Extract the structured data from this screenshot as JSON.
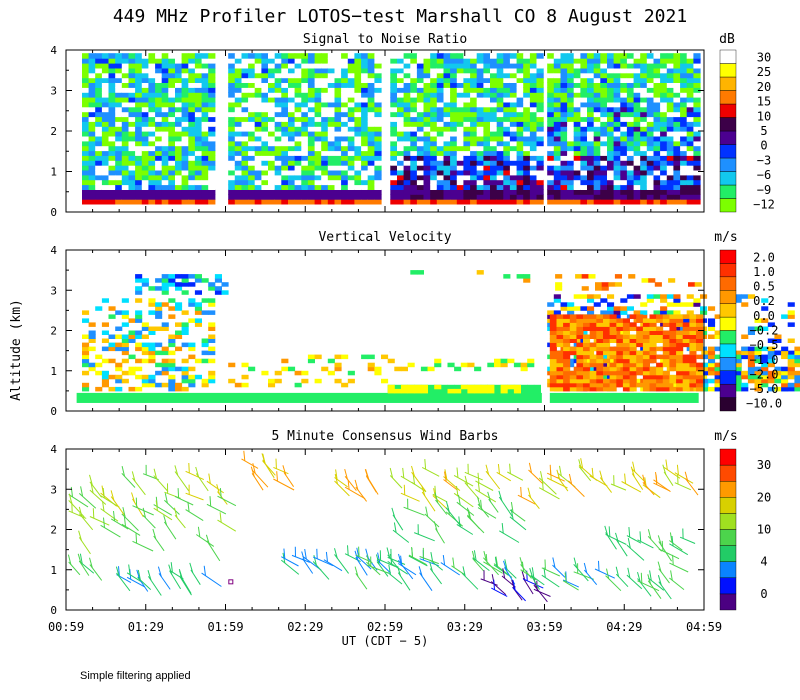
{
  "title": "449 MHz Profiler LOTOS−test Marshall CO  8 August 2021",
  "footnote": "Simple filtering applied",
  "colors": {
    "snr_scale": [
      "#7cff00",
      "#22ee66",
      "#12c8ee",
      "#1e90ff",
      "#0032ff",
      "#4b0090",
      "#3c0048",
      "#ee0000",
      "#ff7a00",
      "#ffb400",
      "#ffff00",
      "#ffffff"
    ],
    "vel_scale": [
      "#2a0030",
      "#4b0090",
      "#0028ff",
      "#1e90ff",
      "#00e0ff",
      "#22ee66",
      "#ffff00",
      "#ffc800",
      "#ff9800",
      "#ff6a00",
      "#ff3000",
      "#ff0000"
    ],
    "wind_scale": [
      "#4b0082",
      "#0010ff",
      "#0a84ff",
      "#22cc66",
      "#4cd44c",
      "#a0e020",
      "#d8d000",
      "#ff9a00",
      "#ff4a00",
      "#ff0000"
    ]
  },
  "chart_data": [
    {
      "type": "heatmap",
      "title": "Signal to Noise Ratio",
      "ylabel": "",
      "xlabel": "",
      "x_range": [
        "00:59",
        "04:59"
      ],
      "ylim": [
        0,
        4
      ],
      "yticks": [
        "0",
        "1",
        "2",
        "3",
        "4"
      ],
      "colorbar_unit": "dB",
      "colorbar_labels": [
        "30",
        "25",
        "20",
        "15",
        "10",
        "5",
        "0",
        "−3",
        "−6",
        "−9",
        "−12"
      ],
      "data_blocks": [
        [
          "01:05",
          "01:55"
        ],
        [
          "02:00",
          "02:57"
        ],
        [
          "03:01",
          "03:58"
        ],
        [
          "04:00",
          "04:57"
        ]
      ]
    },
    {
      "type": "heatmap",
      "title": "Vertical Velocity",
      "ylabel": "Altitude (km)",
      "xlabel": "",
      "x_range": [
        "00:59",
        "04:59"
      ],
      "ylim": [
        0,
        4
      ],
      "yticks": [
        "0",
        "1",
        "2",
        "3",
        "4"
      ],
      "colorbar_unit": "m/s",
      "colorbar_labels": [
        "2.0",
        "1.0",
        "0.5",
        "0.2",
        "0.0",
        "−0.2",
        "−0.5",
        "−1.0",
        "−2.0",
        "−5.0",
        "−10.0"
      ]
    },
    {
      "type": "scatter",
      "title": "5 Minute Consensus Wind Barbs",
      "ylabel": "",
      "xlabel": "UT  (CDT − 5)",
      "x_range": [
        "00:59",
        "04:59"
      ],
      "xticks": [
        "00:59",
        "01:29",
        "01:59",
        "02:29",
        "02:59",
        "03:29",
        "03:59",
        "04:29",
        "04:59"
      ],
      "ylim": [
        0,
        4
      ],
      "yticks": [
        "0",
        "1",
        "2",
        "3",
        "4"
      ],
      "colorbar_unit": "m/s",
      "colorbar_labels": [
        "30",
        "20",
        "10",
        "4",
        "0"
      ]
    }
  ]
}
